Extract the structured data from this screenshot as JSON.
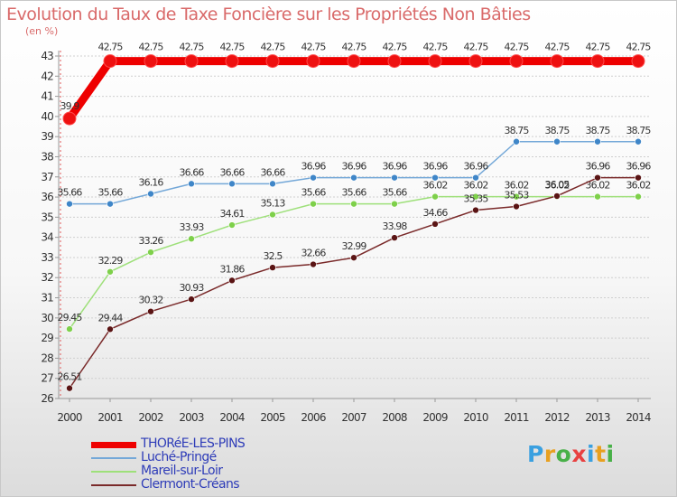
{
  "title": "Evolution du Taux de Taxe Foncière sur les Propriétés Non Bâties",
  "unit_label": "(en %)",
  "logo": {
    "text": "Proxiti",
    "letters": [
      {
        "ch": "P",
        "color": "#3aa0e0"
      },
      {
        "ch": "r",
        "color": "#e8a020"
      },
      {
        "ch": "o",
        "color": "#48b048"
      },
      {
        "ch": "x",
        "color": "#e84040"
      },
      {
        "ch": "i",
        "color": "#3aa0e0"
      },
      {
        "ch": "t",
        "color": "#e8a020"
      },
      {
        "ch": "i",
        "color": "#48b048"
      }
    ]
  },
  "legend": [
    {
      "label": "THORéE-LES-PINS",
      "color": "#ee0000"
    },
    {
      "label": "Luché-Pringé",
      "color": "#74a8d8"
    },
    {
      "label": "Mareil-sur-Loir",
      "color": "#9ee07a"
    },
    {
      "label": "Clermont-Créans",
      "color": "#7a2a2a"
    }
  ],
  "chart_data": {
    "type": "line",
    "title": "Evolution du Taux de Taxe Foncière sur les Propriétés Non Bâties",
    "ylabel": "(en %)",
    "xlabel": "",
    "ylim": [
      26,
      43
    ],
    "yticks": [
      26,
      27,
      28,
      29,
      30,
      31,
      32,
      33,
      34,
      35,
      36,
      37,
      38,
      39,
      40,
      41,
      42,
      43
    ],
    "grid": "horizontal dashed",
    "categories": [
      "2000",
      "2001",
      "2002",
      "2003",
      "2004",
      "2005",
      "2006",
      "2007",
      "2008",
      "2009",
      "2010",
      "2011",
      "2012",
      "2013",
      "2014"
    ],
    "series": [
      {
        "name": "THORéE-LES-PINS",
        "color": "#ee0000",
        "point_color": "#ee1111",
        "values": [
          39.9,
          42.75,
          42.75,
          42.75,
          42.75,
          42.75,
          42.75,
          42.75,
          42.75,
          42.75,
          42.75,
          42.75,
          42.75,
          42.75,
          42.75
        ],
        "labels": [
          "39.9",
          "42.75",
          "42.75",
          "42.75",
          "42.75",
          "42.75",
          "42.75",
          "42.75",
          "42.75",
          "42.75",
          "42.75",
          "42.75",
          "42.75",
          "42.75",
          "42.75"
        ]
      },
      {
        "name": "Luché-Pringé",
        "color": "#74a8d8",
        "point_color": "#3f86c8",
        "values": [
          35.66,
          35.66,
          36.16,
          36.66,
          36.66,
          36.66,
          36.96,
          36.96,
          36.96,
          36.96,
          36.96,
          38.75,
          38.75,
          38.75,
          38.75
        ],
        "labels": [
          "35.66",
          "35.66",
          "36.16",
          "36.66",
          "36.66",
          "36.66",
          "36.96",
          "36.96",
          "36.96",
          "36.96",
          "36.96",
          "38.75",
          "38.75",
          "38.75",
          "38.75"
        ]
      },
      {
        "name": "Mareil-sur-Loir",
        "color": "#9ee07a",
        "point_color": "#7ed04a",
        "values": [
          29.45,
          32.29,
          33.26,
          33.93,
          34.61,
          35.13,
          35.66,
          35.66,
          35.66,
          36.02,
          36.02,
          36.02,
          36.02,
          36.02,
          36.02
        ],
        "labels": [
          "29.45",
          "32.29",
          "33.26",
          "33.93",
          "34.61",
          "35.13",
          "35.66",
          "35.66",
          "35.66",
          "36.02",
          "36.02",
          "36.02",
          "36.02",
          "36.02",
          "36.02"
        ]
      },
      {
        "name": "Clermont-Créans",
        "color": "#7a2a2a",
        "point_color": "#5a1414",
        "values": [
          26.51,
          29.44,
          30.32,
          30.93,
          31.86,
          32.5,
          32.66,
          32.99,
          33.98,
          34.66,
          35.35,
          35.53,
          36.05,
          36.96,
          36.96
        ],
        "labels": [
          "26.51",
          "29.44",
          "30.32",
          "30.93",
          "31.86",
          "32.5",
          "32.66",
          "32.99",
          "33.98",
          "34.66",
          "35.35",
          "35.53",
          "36.05",
          "36.96",
          "36.96"
        ]
      }
    ]
  }
}
